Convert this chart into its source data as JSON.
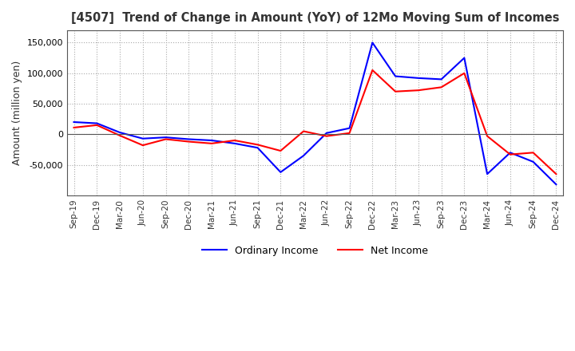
{
  "title": "[4507]  Trend of Change in Amount (YoY) of 12Mo Moving Sum of Incomes",
  "ylabel": "Amount (million yen)",
  "ylim": [
    -100000,
    170000
  ],
  "yticks": [
    -50000,
    0,
    50000,
    100000,
    150000
  ],
  "background_color": "#ffffff",
  "grid_color": "#aaaaaa",
  "ordinary_income_color": "#0000ff",
  "net_income_color": "#ff0000",
  "dates": [
    "Sep-19",
    "Dec-19",
    "Mar-20",
    "Jun-20",
    "Sep-20",
    "Dec-20",
    "Mar-21",
    "Jun-21",
    "Sep-21",
    "Dec-21",
    "Mar-22",
    "Jun-22",
    "Sep-22",
    "Dec-22",
    "Mar-23",
    "Jun-23",
    "Sep-23",
    "Dec-23",
    "Mar-24",
    "Jun-24",
    "Sep-24",
    "Dec-24"
  ],
  "ordinary_income": [
    20000,
    18000,
    3000,
    -7000,
    -5000,
    -8000,
    -10000,
    -15000,
    -22000,
    -62000,
    -35000,
    2000,
    10000,
    150000,
    95000,
    92000,
    90000,
    125000,
    -65000,
    -30000,
    -45000,
    -82000
  ],
  "net_income": [
    11000,
    15000,
    -2000,
    -18000,
    -8000,
    -12000,
    -15000,
    -10000,
    -17000,
    -27000,
    5000,
    -3000,
    2000,
    105000,
    70000,
    72000,
    77000,
    100000,
    -3000,
    -33000,
    -30000,
    -65000
  ]
}
